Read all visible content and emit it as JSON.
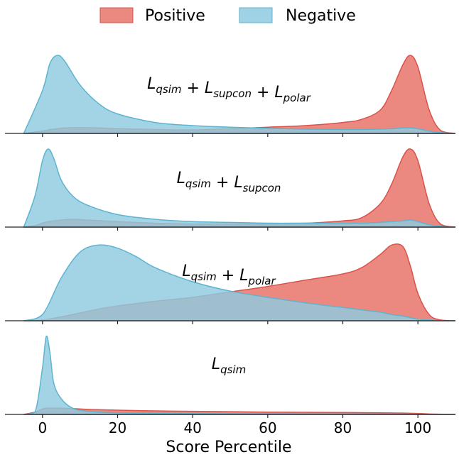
{
  "chart_data": {
    "type": "area",
    "xlabel": "Score Percentile",
    "xlim": [
      -10,
      110
    ],
    "xticks": [
      0,
      20,
      40,
      60,
      80,
      100
    ],
    "legend": {
      "placement": "top-center",
      "entries": [
        {
          "name": "Positive",
          "color": "#e8746a",
          "edge": "#d9534a"
        },
        {
          "name": "Negative",
          "color": "#8ecae0",
          "edge": "#5eb4cf"
        }
      ]
    },
    "panels": [
      {
        "title": [
          "L",
          "qsim",
          " + ",
          "L",
          "supcon",
          " + ",
          "L",
          "polar"
        ],
        "title_text": "Lqsim + Lsupcon + Lpolar",
        "x": [
          -5,
          0,
          2,
          4,
          6,
          10,
          15,
          20,
          30,
          40,
          50,
          60,
          70,
          80,
          85,
          90,
          93,
          96,
          98,
          100,
          103,
          106,
          110
        ],
        "series": [
          {
            "name": "Positive",
            "values": [
              0,
              0.03,
              0.05,
              0.06,
              0.07,
              0.075,
              0.07,
              0.06,
              0.05,
              0.045,
              0.06,
              0.08,
              0.1,
              0.14,
              0.18,
              0.3,
              0.55,
              0.88,
              1.0,
              0.85,
              0.3,
              0.04,
              0
            ]
          },
          {
            "name": "Negative",
            "values": [
              0,
              0.55,
              0.9,
              1.0,
              0.92,
              0.62,
              0.38,
              0.25,
              0.14,
              0.1,
              0.08,
              0.065,
              0.055,
              0.05,
              0.05,
              0.055,
              0.06,
              0.07,
              0.07,
              0.06,
              0.03,
              0.01,
              0
            ]
          }
        ]
      },
      {
        "title": [
          "L",
          "qsim",
          " + ",
          "L",
          "supcon"
        ],
        "title_text": "Lqsim + Lsupcon",
        "x": [
          -5,
          -2,
          0,
          1.5,
          3,
          5,
          8,
          12,
          20,
          30,
          40,
          50,
          60,
          70,
          80,
          85,
          90,
          93,
          96,
          98,
          100,
          103,
          106,
          110
        ],
        "series": [
          {
            "name": "Positive",
            "values": [
              0,
              0.02,
              0.05,
              0.07,
              0.08,
              0.09,
              0.1,
              0.09,
              0.07,
              0.05,
              0.04,
              0.04,
              0.04,
              0.05,
              0.08,
              0.12,
              0.3,
              0.55,
              0.9,
              1.0,
              0.85,
              0.3,
              0.04,
              0
            ]
          },
          {
            "name": "Negative",
            "values": [
              0,
              0.4,
              0.85,
              1.0,
              0.88,
              0.6,
              0.4,
              0.28,
              0.16,
              0.1,
              0.07,
              0.06,
              0.05,
              0.05,
              0.05,
              0.05,
              0.06,
              0.07,
              0.08,
              0.09,
              0.07,
              0.03,
              0.01,
              0
            ]
          }
        ]
      },
      {
        "title": [
          "L",
          "qsim",
          " + ",
          "L",
          "polar"
        ],
        "title_text": "Lqsim + Lpolar",
        "x": [
          -5,
          0,
          5,
          10,
          15,
          20,
          25,
          30,
          40,
          50,
          60,
          70,
          80,
          85,
          90,
          93,
          96,
          98,
          100,
          103,
          106,
          110
        ],
        "series": [
          {
            "name": "Positive",
            "values": [
              0,
              0.01,
              0.05,
              0.1,
              0.15,
              0.19,
              0.22,
              0.25,
              0.3,
              0.37,
              0.44,
              0.52,
              0.6,
              0.68,
              0.85,
              0.97,
              0.95,
              0.7,
              0.35,
              0.08,
              0.01,
              0
            ]
          },
          {
            "name": "Negative",
            "values": [
              0,
              0.08,
              0.55,
              0.88,
              0.97,
              0.93,
              0.82,
              0.68,
              0.5,
              0.38,
              0.3,
              0.23,
              0.17,
              0.14,
              0.11,
              0.08,
              0.06,
              0.04,
              0.02,
              0.01,
              0,
              0
            ]
          }
        ]
      },
      {
        "title": [
          "L",
          "qsim"
        ],
        "title_text": "Lqsim",
        "x": [
          -5,
          -2,
          0,
          1,
          2,
          3,
          5,
          8,
          12,
          20,
          30,
          40,
          50,
          60,
          70,
          80,
          90,
          96,
          100,
          104,
          110
        ],
        "series": [
          {
            "name": "Positive",
            "values": [
              0,
              0.03,
              0.07,
              0.08,
              0.08,
              0.08,
              0.08,
              0.075,
              0.065,
              0.055,
              0.045,
              0.04,
              0.035,
              0.03,
              0.027,
              0.025,
              0.02,
              0.017,
              0.012,
              0.004,
              0
            ]
          },
          {
            "name": "Negative",
            "values": [
              0,
              0.03,
              0.6,
              1.0,
              0.78,
              0.4,
              0.2,
              0.08,
              0.04,
              0.02,
              0.012,
              0.01,
              0.008,
              0.007,
              0.006,
              0.006,
              0.005,
              0.004,
              0.003,
              0.001,
              0
            ]
          }
        ]
      }
    ]
  }
}
